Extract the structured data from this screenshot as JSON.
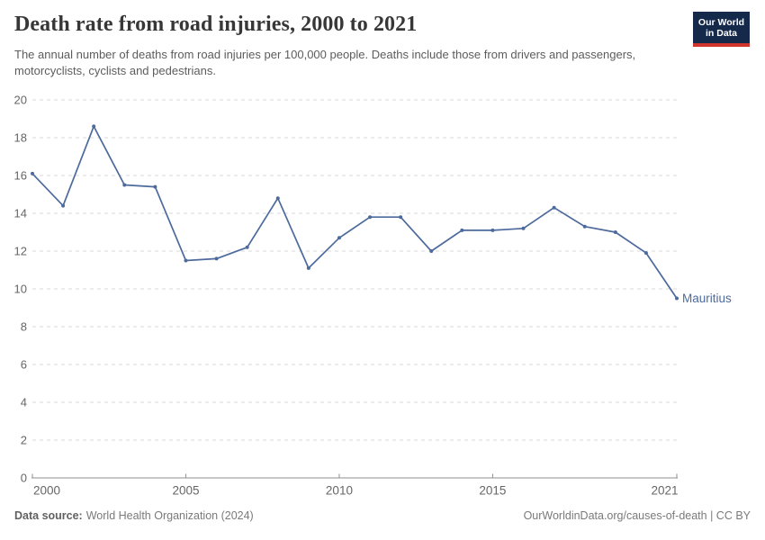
{
  "header": {
    "title": "Death rate from road injuries, 2000 to 2021",
    "subtitle": "The annual number of deaths from road injuries per 100,000 people. Deaths include those from drivers and passengers, motorcyclists, cyclists and pedestrians.",
    "logo": {
      "line1": "Our World",
      "line2": "in Data"
    }
  },
  "chart_data": {
    "type": "line",
    "title": "Death rate from road injuries, 2000 to 2021",
    "xlabel": "",
    "ylabel": "",
    "xlim": [
      2000,
      2021
    ],
    "ylim": [
      0,
      20
    ],
    "x_ticks": [
      2000,
      2005,
      2010,
      2015,
      2021
    ],
    "y_ticks": [
      0,
      2,
      4,
      6,
      8,
      10,
      12,
      14,
      16,
      18,
      20
    ],
    "grid": "horizontal-dashed",
    "legend_position": "end-of-line",
    "end_label": "Mauritius",
    "series": [
      {
        "name": "Mauritius",
        "color": "#4C6A9C",
        "x": [
          2000,
          2001,
          2002,
          2003,
          2004,
          2005,
          2006,
          2007,
          2008,
          2009,
          2010,
          2011,
          2012,
          2013,
          2014,
          2015,
          2016,
          2017,
          2018,
          2019,
          2020,
          2021
        ],
        "values": [
          16.1,
          14.4,
          18.6,
          15.5,
          15.4,
          11.5,
          11.6,
          12.2,
          14.8,
          11.1,
          12.7,
          13.8,
          13.8,
          12.0,
          13.1,
          13.1,
          13.2,
          14.3,
          13.3,
          13.0,
          11.9,
          9.5
        ]
      }
    ]
  },
  "footer": {
    "source_label": "Data source:",
    "source_text": "World Health Organization (2024)",
    "link_text": "OurWorldinData.org/causes-of-death | CC BY"
  },
  "colors": {
    "line": "#4C6A9C",
    "grid": "#dadada",
    "axis": "#8f8f8f",
    "tick_label": "#666666",
    "logo_bg": "#15294B",
    "logo_stripe": "#D0342C"
  }
}
